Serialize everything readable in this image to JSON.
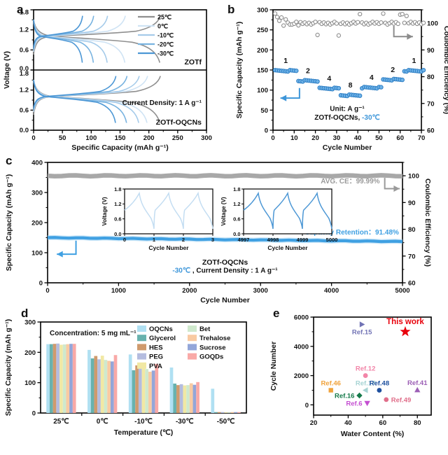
{
  "figure": {
    "panel_labels": {
      "a": "a",
      "b": "b",
      "c": "c",
      "d": "d",
      "e": "e"
    }
  },
  "colors": {
    "black": "#111111",
    "gray_curve": "#8f8f8f",
    "ce_gray": "#8c8c8c",
    "band_gray": "#a8a8a8",
    "avg_gray": "#9a9a9a",
    "cap_blue": "#3fa0e2",
    "point_blue_fill": "#6fb3e8",
    "point_blue_stroke": "#2f7fc4",
    "accent_blue": "#3d96d9",
    "accent_red": "#e8000b"
  },
  "chart_data": [
    {
      "panel": "a",
      "type": "line",
      "xlabel": "Specific Capacity (mAh g⁻¹)",
      "ylabel": "Voltage (V)",
      "xlim": [
        0,
        300
      ],
      "xticks": [
        0,
        50,
        100,
        150,
        200,
        250,
        300
      ],
      "ylim": [
        0,
        1.8
      ],
      "yticks": [
        0,
        0.6,
        1.2,
        1.8
      ],
      "legend": [
        "25℃",
        "0℃",
        "-10℃",
        "-20℃",
        "-30℃"
      ],
      "series_colors": [
        "#8f8f8f",
        "#cfe3f4",
        "#a5cbea",
        "#78b3e0",
        "#4c97d5"
      ],
      "subpanels": [
        {
          "title": "ZOTf",
          "annotation": "",
          "series": [
            {
              "temp": "25℃",
              "capacity": 228
            },
            {
              "temp": "0℃",
              "capacity": 165
            },
            {
              "temp": "-10℃",
              "capacity": 133
            },
            {
              "temp": "-20℃",
              "capacity": 108
            },
            {
              "temp": "-30℃",
              "capacity": 88
            }
          ]
        },
        {
          "title": "ZOTf-OQCNs",
          "annotation": "Current Density: 1 A g⁻¹",
          "series": [
            {
              "temp": "25℃",
              "capacity": 228
            },
            {
              "temp": "0℃",
              "capacity": 205
            },
            {
              "temp": "-10℃",
              "capacity": 190
            },
            {
              "temp": "-20℃",
              "capacity": 168
            },
            {
              "temp": "-30℃",
              "capacity": 148
            }
          ]
        }
      ]
    },
    {
      "panel": "b",
      "type": "scatter",
      "xlabel": "Cycle Number",
      "ylabel_left": "Specific Capacity (mAh g⁻¹)",
      "ylabel_right": "Coulombic Efficiency (%)",
      "xlim": [
        0,
        70
      ],
      "xticks": [
        0,
        10,
        20,
        30,
        40,
        50,
        60,
        70
      ],
      "ylim_left": [
        0,
        300
      ],
      "yticks_left": [
        0,
        50,
        100,
        150,
        200,
        250,
        300
      ],
      "ylim_right": [
        60,
        105
      ],
      "yticks_right": [
        60,
        70,
        80,
        90,
        100
      ],
      "rate_segments": [
        {
          "rate": "1",
          "start": 1,
          "end": 11,
          "capacity": 148
        },
        {
          "rate": "2",
          "start": 12,
          "end": 21,
          "capacity": 123
        },
        {
          "rate": "4",
          "start": 22,
          "end": 31,
          "capacity": 104
        },
        {
          "rate": "8",
          "start": 32,
          "end": 41,
          "capacity": 87
        },
        {
          "rate": "4",
          "start": 42,
          "end": 51,
          "capacity": 106
        },
        {
          "rate": "2",
          "start": 52,
          "end": 61,
          "capacity": 126
        },
        {
          "rate": "1",
          "start": 62,
          "end": 71,
          "capacity": 148
        }
      ],
      "ce_typical": 100,
      "ce_outliers": [
        [
          1,
          103.6
        ],
        [
          2,
          102.3
        ],
        [
          3,
          100.9
        ],
        [
          4,
          102.1
        ],
        [
          5,
          99.1
        ],
        [
          6,
          101.4
        ],
        [
          7,
          100.2
        ],
        [
          8,
          99.5
        ],
        [
          10,
          99.8
        ],
        [
          12,
          99.2
        ],
        [
          21,
          95.6
        ],
        [
          31,
          95.4
        ],
        [
          41,
          103.4
        ],
        [
          52,
          103.6
        ],
        [
          60,
          103.2
        ],
        [
          61,
          103.4
        ],
        [
          63,
          102.7
        ]
      ],
      "unit_label": "Unit: A g⁻¹",
      "sample_label": "ZOTf-OQCNs, ",
      "temp_label": "-30℃"
    },
    {
      "panel": "c",
      "type": "line",
      "xlabel": "Cycle Number",
      "ylabel_left": "Specific Capacity (mAh g⁻¹)",
      "ylabel_right": "Coulombic Efficiency (%)",
      "xlim": [
        0,
        5000
      ],
      "xticks": [
        0,
        1000,
        2000,
        3000,
        4000,
        5000
      ],
      "ylim_left": [
        0,
        400
      ],
      "yticks_left": [
        0,
        100,
        200,
        300,
        400
      ],
      "ylim_right": [
        60,
        105
      ],
      "yticks_right": [
        60,
        70,
        80,
        90,
        100
      ],
      "capacity_start": 150,
      "capacity_end": 137,
      "ce_value": 100,
      "avg_ce_label": "AVG. CE：99.99%",
      "retention_label": "Capacity Retention：91.48%",
      "sample_label": "ZOTf-OQCNs",
      "condition_temp": "-30℃",
      "condition_rest": " , Current Density : 1 A g⁻¹",
      "insets": [
        {
          "xticks": [
            "0",
            "1",
            "2",
            "3"
          ],
          "xlabel": "Cycle Number",
          "ylabel": "Voltage (V)",
          "yticks": [
            0,
            0.6,
            1.2,
            1.8
          ],
          "cycles": 3,
          "color": "#c3ddf2"
        },
        {
          "xticks": [
            "4997",
            "4998",
            "4999",
            "5000"
          ],
          "xlabel": "Cycle Number",
          "ylabel": "Voltage (V)",
          "yticks": [
            0,
            0.6,
            1.2,
            1.8
          ],
          "cycles": 3,
          "color": "#4c97d5"
        }
      ]
    },
    {
      "panel": "d",
      "type": "bar",
      "xlabel": "Temperature (℃)",
      "ylabel": "Specific Capacity (mAh g⁻¹)",
      "ylim": [
        0,
        300
      ],
      "yticks": [
        0,
        100,
        200,
        300
      ],
      "annotation": "Concentration: 5 mg mL⁻¹",
      "categories": [
        "25℃",
        "0℃",
        "-10℃",
        "-30℃",
        "-50℃"
      ],
      "series": [
        {
          "name": "OQCNs",
          "color": "#b0e0f2",
          "values": [
            227,
            208,
            193,
            150,
            80
          ]
        },
        {
          "name": "Glycerol",
          "color": "#68b2ae",
          "values": [
            227,
            180,
            141,
            97,
            3
          ]
        },
        {
          "name": "HES",
          "color": "#cf9a6d",
          "values": [
            228,
            188,
            157,
            92,
            3
          ]
        },
        {
          "name": "PEG",
          "color": "#b4bcdf",
          "values": [
            229,
            177,
            150,
            95,
            3
          ]
        },
        {
          "name": "PVA",
          "color": "#f1e8a4",
          "values": [
            225,
            189,
            153,
            91,
            2
          ]
        },
        {
          "name": "Bet",
          "color": "#cfe9cd",
          "values": [
            226,
            175,
            145,
            92,
            2
          ]
        },
        {
          "name": "Trehalose",
          "color": "#f9caa2",
          "values": [
            227,
            172,
            136,
            98,
            3
          ]
        },
        {
          "name": "Sucrose",
          "color": "#93a6d9",
          "values": [
            228,
            170,
            140,
            93,
            3
          ]
        },
        {
          "name": "GOQDs",
          "color": "#f9a9a7",
          "values": [
            228,
            191,
            162,
            102,
            3
          ]
        }
      ]
    },
    {
      "panel": "e",
      "type": "scatter",
      "xlabel": "Water Content (%)",
      "ylabel": "Cycle Number",
      "xlim": [
        20,
        88
      ],
      "xticks": [
        20,
        40,
        60,
        80
      ],
      "ylim": [
        -700,
        6000
      ],
      "yticks": [
        0,
        2000,
        4000,
        6000
      ],
      "points": [
        {
          "label": "This work",
          "x": 73,
          "y": 5000,
          "marker": "star",
          "color": "#e8000b",
          "label_pos": "above",
          "emphasis": true
        },
        {
          "label": "Ref.15",
          "x": 48,
          "y": 5500,
          "marker": "triangle-right",
          "color": "#7173b5",
          "label_pos": "below"
        },
        {
          "label": "Ref.12",
          "x": 50,
          "y": 2000,
          "marker": "circle",
          "color": "#f285a8",
          "label_pos": "above"
        },
        {
          "label": "Ref.46",
          "x": 30,
          "y": 1000,
          "marker": "square",
          "color": "#f0a23a",
          "label_pos": "above"
        },
        {
          "label": "Ref.17",
          "x": 50,
          "y": 1000,
          "marker": "triangle-left",
          "color": "#a6d3d3",
          "label_pos": "above"
        },
        {
          "label": "Ref.48",
          "x": 58,
          "y": 1000,
          "marker": "circle",
          "color": "#1d4f9e",
          "label_pos": "above"
        },
        {
          "label": "Ref.41",
          "x": 80,
          "y": 1020,
          "marker": "triangle-up",
          "color": "#9c5fb5",
          "label_pos": "above"
        },
        {
          "label": "Ref.16",
          "x": 46.5,
          "y": 640,
          "marker": "diamond",
          "color": "#157a4a",
          "label_pos": "left"
        },
        {
          "label": "Ref.49",
          "x": 62,
          "y": 360,
          "marker": "circle",
          "color": "#e06e8a",
          "label_pos": "right"
        },
        {
          "label": "Ref.6",
          "x": 51,
          "y": 110,
          "marker": "triangle-down",
          "color": "#c44fd1",
          "label_pos": "left"
        }
      ]
    }
  ]
}
